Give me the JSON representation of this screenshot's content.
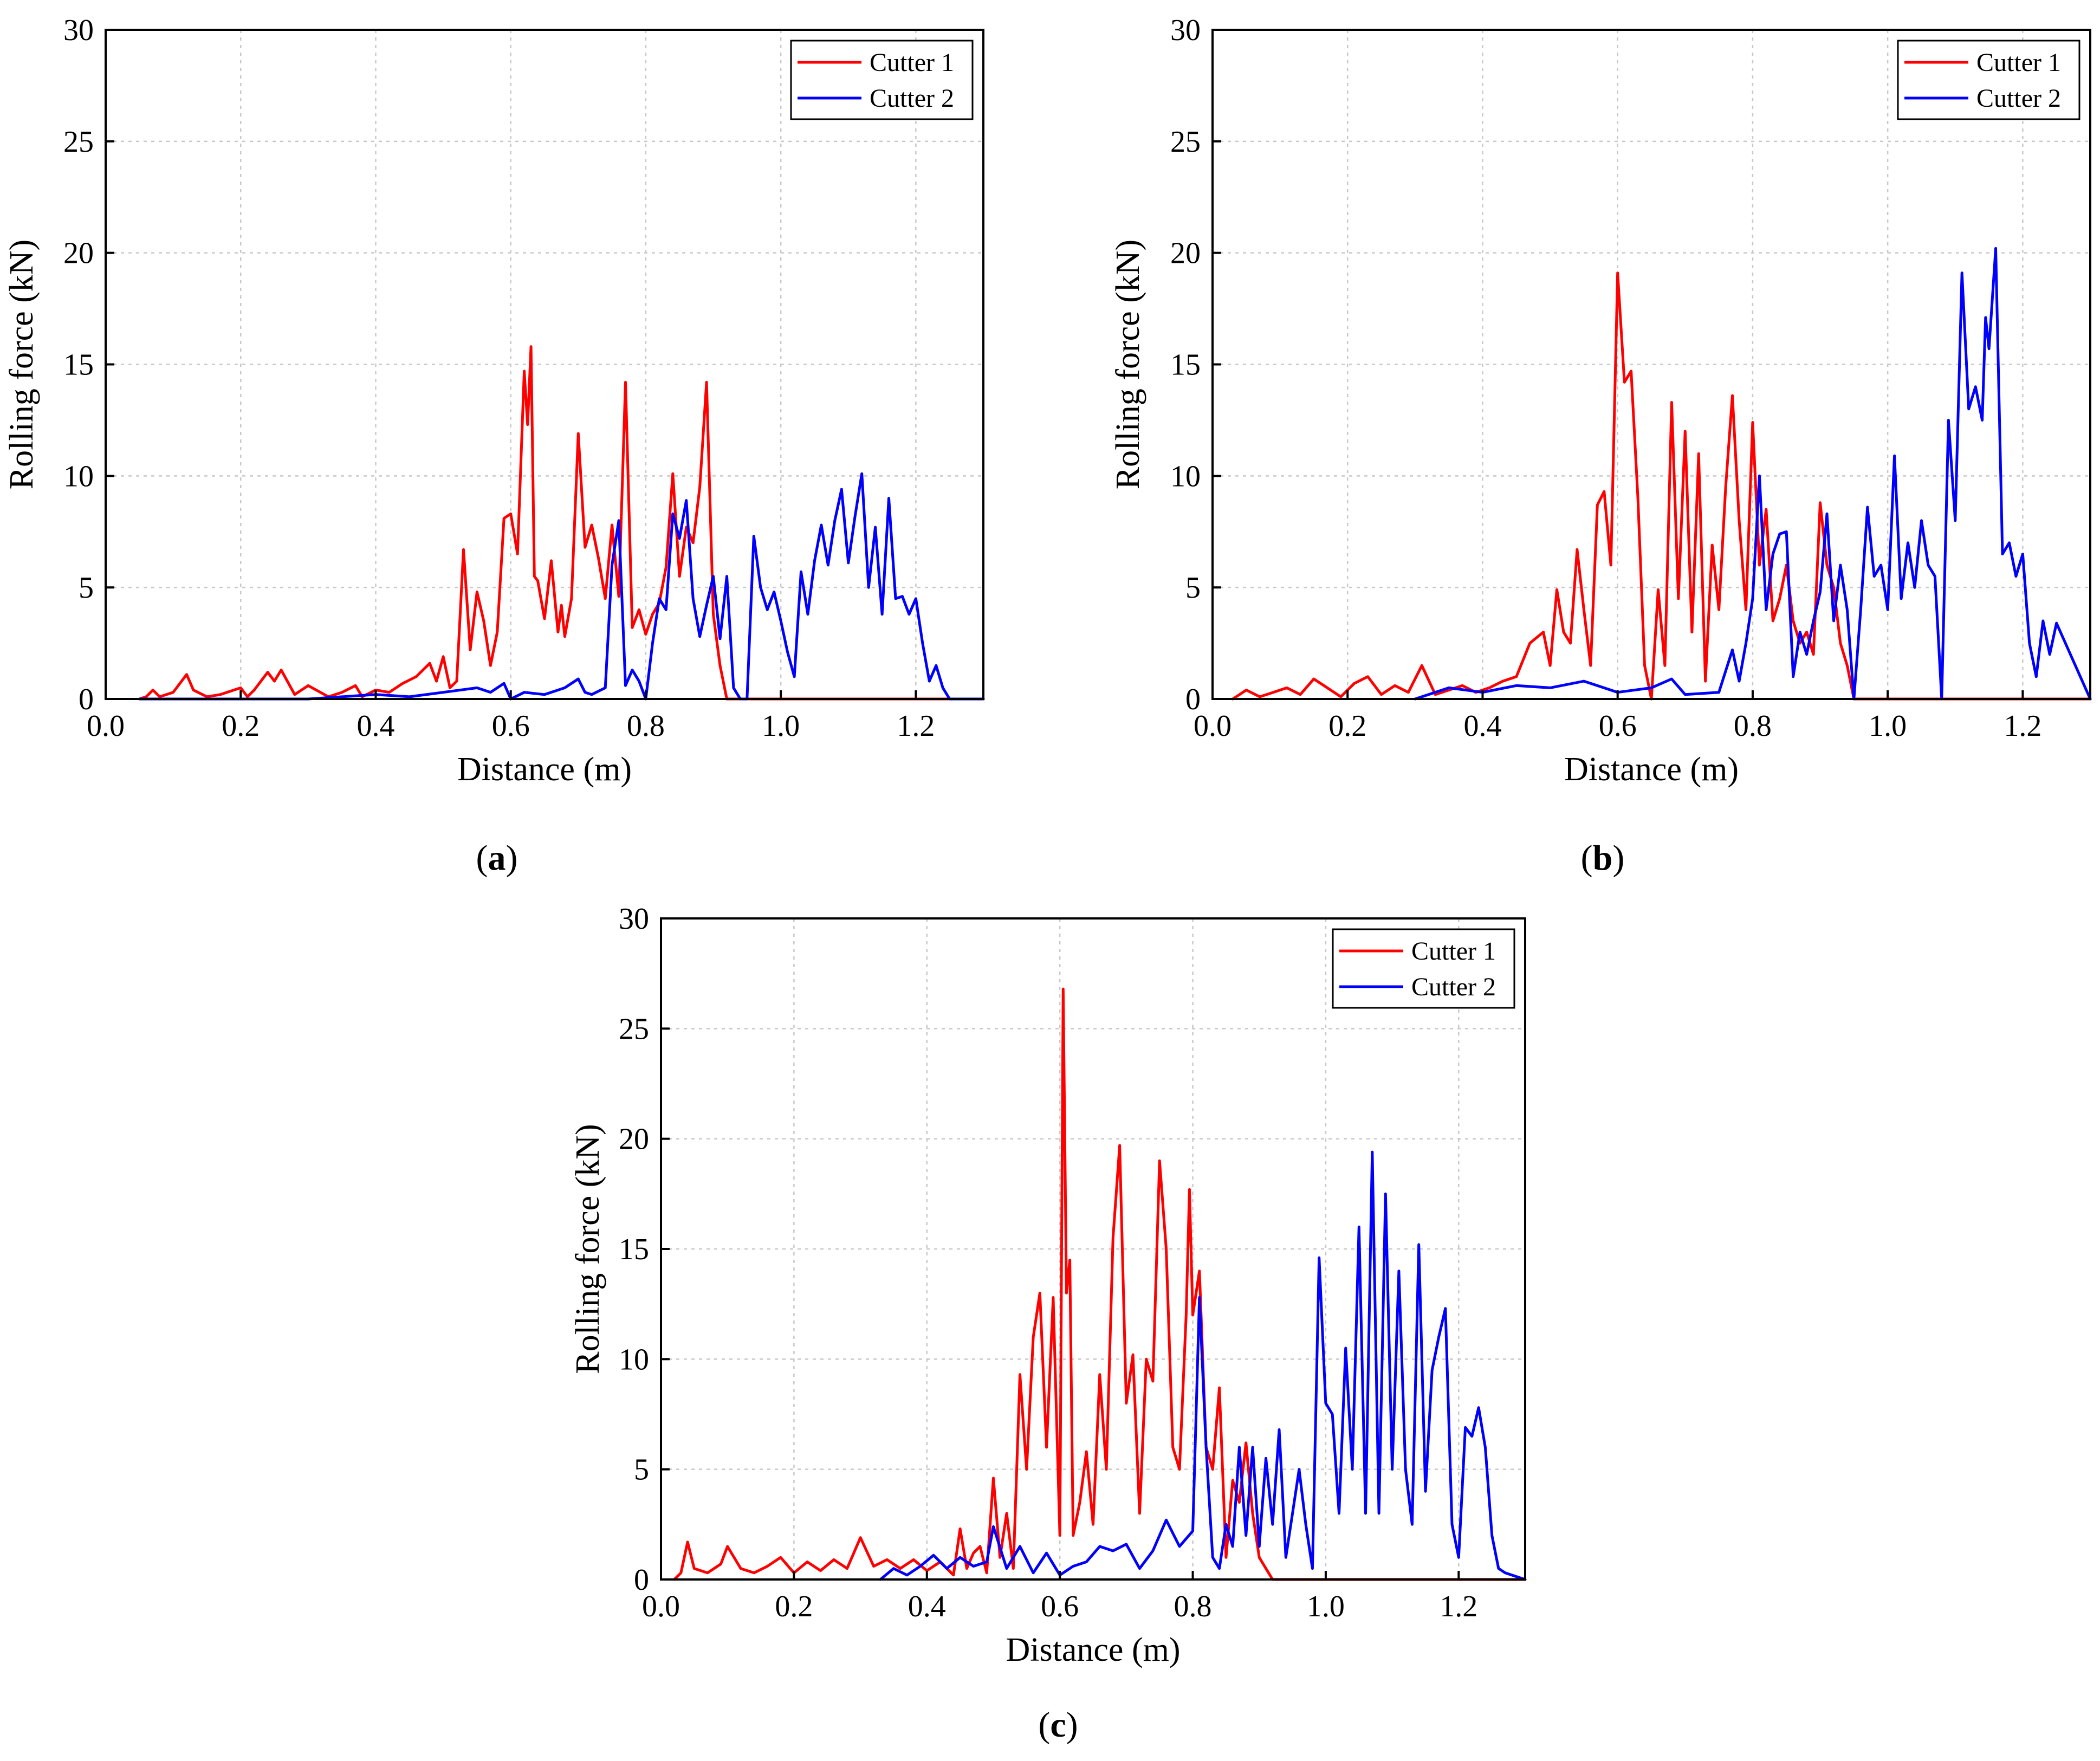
{
  "chart_data": [
    {
      "type": "line",
      "panel": "a",
      "xlabel": "Distance (m)",
      "ylabel": "Rolling force (kN)",
      "xlim": [
        0,
        1.3
      ],
      "ylim": [
        0,
        30
      ],
      "xticks": [
        0.0,
        0.2,
        0.4,
        0.6,
        0.8,
        1.0,
        1.2
      ],
      "xtick_labels": [
        "0.0",
        "0.2",
        "0.4",
        "0.6",
        "0.8",
        "1.0",
        "1.2"
      ],
      "yticks": [
        0,
        5,
        10,
        15,
        20,
        25,
        30
      ],
      "ytick_labels": [
        "0",
        "5",
        "10",
        "15",
        "20",
        "25",
        "30"
      ],
      "grid": true,
      "legend_position": "top-right",
      "series": [
        {
          "name": "Cutter 1",
          "color": "#ff0000",
          "x": [
            0.05,
            0.06,
            0.07,
            0.08,
            0.1,
            0.12,
            0.13,
            0.15,
            0.17,
            0.2,
            0.21,
            0.22,
            0.24,
            0.25,
            0.26,
            0.28,
            0.3,
            0.33,
            0.35,
            0.37,
            0.38,
            0.4,
            0.42,
            0.44,
            0.46,
            0.48,
            0.49,
            0.5,
            0.51,
            0.52,
            0.53,
            0.54,
            0.55,
            0.56,
            0.57,
            0.58,
            0.59,
            0.6,
            0.61,
            0.62,
            0.625,
            0.63,
            0.635,
            0.64,
            0.65,
            0.66,
            0.67,
            0.675,
            0.68,
            0.69,
            0.7,
            0.71,
            0.72,
            0.73,
            0.74,
            0.75,
            0.76,
            0.77,
            0.78,
            0.79,
            0.8,
            0.81,
            0.82,
            0.83,
            0.84,
            0.85,
            0.86,
            0.87,
            0.88,
            0.89,
            0.9,
            0.91,
            0.92,
            0.93,
            0.94,
            1.0,
            1.1,
            1.2,
            1.3
          ],
          "y": [
            0,
            0.1,
            0.4,
            0.1,
            0.3,
            1.1,
            0.4,
            0.1,
            0.2,
            0.5,
            0.1,
            0.4,
            1.2,
            0.8,
            1.3,
            0.2,
            0.6,
            0.1,
            0.3,
            0.6,
            0.1,
            0.4,
            0.3,
            0.7,
            1.0,
            1.6,
            0.8,
            1.9,
            0.5,
            0.8,
            6.7,
            2.2,
            4.8,
            3.5,
            1.5,
            3.0,
            8.1,
            8.3,
            6.5,
            14.7,
            12.3,
            15.8,
            5.5,
            5.3,
            3.6,
            6.2,
            3.0,
            4.2,
            2.8,
            4.5,
            11.9,
            6.8,
            7.8,
            6.3,
            4.5,
            7.8,
            4.6,
            14.2,
            3.2,
            4.0,
            2.9,
            3.8,
            4.3,
            5.9,
            10.1,
            5.5,
            7.7,
            7.0,
            9.5,
            14.2,
            3.8,
            1.5,
            0,
            0,
            0,
            0,
            0,
            0,
            0
          ]
        },
        {
          "name": "Cutter 2",
          "color": "#0000ff",
          "x": [
            0.05,
            0.3,
            0.35,
            0.4,
            0.45,
            0.5,
            0.55,
            0.57,
            0.59,
            0.6,
            0.62,
            0.65,
            0.68,
            0.7,
            0.71,
            0.72,
            0.74,
            0.75,
            0.76,
            0.77,
            0.78,
            0.79,
            0.8,
            0.81,
            0.82,
            0.83,
            0.84,
            0.85,
            0.86,
            0.87,
            0.88,
            0.89,
            0.9,
            0.91,
            0.92,
            0.93,
            0.94,
            0.95,
            0.96,
            0.97,
            0.98,
            0.99,
            1.0,
            1.01,
            1.02,
            1.03,
            1.04,
            1.05,
            1.06,
            1.07,
            1.08,
            1.09,
            1.1,
            1.11,
            1.12,
            1.13,
            1.14,
            1.15,
            1.16,
            1.17,
            1.18,
            1.19,
            1.2,
            1.21,
            1.22,
            1.23,
            1.24,
            1.25,
            1.26,
            1.3
          ],
          "y": [
            0,
            0,
            0.1,
            0.2,
            0.1,
            0.3,
            0.5,
            0.3,
            0.7,
            0,
            0.3,
            0.2,
            0.5,
            0.9,
            0.3,
            0.2,
            0.5,
            6.0,
            8.0,
            0.6,
            1.3,
            0.8,
            0,
            2.5,
            4.5,
            4.0,
            8.3,
            7.2,
            8.9,
            4.5,
            2.8,
            4.2,
            5.5,
            2.7,
            5.5,
            0.5,
            0,
            0,
            7.3,
            5.0,
            4.0,
            4.8,
            3.5,
            2.1,
            1.0,
            5.7,
            3.8,
            6.2,
            7.8,
            6.0,
            8.0,
            9.4,
            6.1,
            8.2,
            10.1,
            5.0,
            7.7,
            3.8,
            9.0,
            4.5,
            4.6,
            3.8,
            4.5,
            2.5,
            0.8,
            1.5,
            0.5,
            0,
            0,
            0
          ]
        }
      ]
    },
    {
      "type": "line",
      "panel": "b",
      "xlabel": "Distance (m)",
      "ylabel": "Rolling force (kN)",
      "xlim": [
        0,
        1.3
      ],
      "ylim": [
        0,
        30
      ],
      "xticks": [
        0.0,
        0.2,
        0.4,
        0.6,
        0.8,
        1.0,
        1.2
      ],
      "xtick_labels": [
        "0.0",
        "0.2",
        "0.4",
        "0.6",
        "0.8",
        "1.0",
        "1.2"
      ],
      "yticks": [
        0,
        5,
        10,
        15,
        20,
        25,
        30
      ],
      "ytick_labels": [
        "0",
        "5",
        "10",
        "15",
        "20",
        "25",
        "30"
      ],
      "grid": true,
      "legend_position": "top-right",
      "series": [
        {
          "name": "Cutter 1",
          "color": "#ff0000",
          "x": [
            0.03,
            0.05,
            0.07,
            0.09,
            0.11,
            0.13,
            0.15,
            0.17,
            0.19,
            0.21,
            0.23,
            0.25,
            0.27,
            0.29,
            0.31,
            0.33,
            0.35,
            0.37,
            0.39,
            0.41,
            0.43,
            0.45,
            0.47,
            0.49,
            0.5,
            0.51,
            0.52,
            0.53,
            0.54,
            0.55,
            0.56,
            0.57,
            0.58,
            0.59,
            0.6,
            0.61,
            0.62,
            0.63,
            0.64,
            0.65,
            0.66,
            0.67,
            0.68,
            0.69,
            0.7,
            0.71,
            0.72,
            0.73,
            0.74,
            0.75,
            0.76,
            0.77,
            0.78,
            0.79,
            0.8,
            0.81,
            0.82,
            0.83,
            0.84,
            0.85,
            0.86,
            0.87,
            0.88,
            0.89,
            0.9,
            0.91,
            0.92,
            0.93,
            0.94,
            0.95,
            1.0,
            1.2,
            1.3
          ],
          "y": [
            0,
            0.4,
            0.1,
            0.3,
            0.5,
            0.2,
            0.9,
            0.5,
            0.1,
            0.7,
            1.0,
            0.2,
            0.6,
            0.3,
            1.5,
            0.2,
            0.4,
            0.6,
            0.3,
            0.5,
            0.8,
            1.0,
            2.5,
            3.0,
            1.5,
            4.9,
            3.0,
            2.5,
            6.7,
            4.0,
            1.5,
            8.7,
            9.3,
            6.0,
            19.1,
            14.2,
            14.7,
            9.0,
            1.5,
            0,
            4.9,
            1.5,
            13.3,
            4.5,
            12.0,
            3.0,
            11.0,
            0.8,
            6.9,
            4.0,
            9.5,
            13.6,
            8.0,
            4.0,
            12.4,
            6.0,
            8.5,
            3.5,
            4.5,
            6.0,
            3.5,
            2.5,
            3.0,
            2.0,
            8.8,
            6.0,
            5.0,
            2.5,
            1.5,
            0,
            0,
            0,
            0
          ]
        },
        {
          "name": "Cutter 2",
          "color": "#0000ff",
          "x": [
            0.3,
            0.35,
            0.4,
            0.45,
            0.5,
            0.55,
            0.6,
            0.65,
            0.68,
            0.7,
            0.75,
            0.77,
            0.78,
            0.79,
            0.8,
            0.81,
            0.82,
            0.83,
            0.84,
            0.85,
            0.86,
            0.87,
            0.88,
            0.89,
            0.9,
            0.91,
            0.92,
            0.93,
            0.94,
            0.95,
            0.96,
            0.97,
            0.98,
            0.99,
            1.0,
            1.01,
            1.02,
            1.03,
            1.04,
            1.05,
            1.06,
            1.07,
            1.08,
            1.09,
            1.1,
            1.11,
            1.12,
            1.13,
            1.14,
            1.145,
            1.15,
            1.16,
            1.17,
            1.18,
            1.19,
            1.2,
            1.21,
            1.22,
            1.23,
            1.24,
            1.25,
            1.3
          ],
          "y": [
            0,
            0.5,
            0.3,
            0.6,
            0.5,
            0.8,
            0.3,
            0.5,
            0.9,
            0.2,
            0.3,
            2.2,
            0.8,
            2.5,
            4.5,
            10.0,
            4.0,
            6.5,
            7.4,
            7.5,
            1.0,
            3.0,
            2.0,
            3.5,
            4.8,
            8.3,
            3.5,
            6.0,
            4.0,
            0,
            4.0,
            8.6,
            5.5,
            6.0,
            4.0,
            10.9,
            4.5,
            7.0,
            5.0,
            8.0,
            6.0,
            5.5,
            0,
            12.5,
            8.0,
            19.1,
            13.0,
            14.0,
            12.5,
            17.1,
            15.7,
            20.2,
            6.5,
            7.0,
            5.5,
            6.5,
            2.5,
            1.0,
            3.5,
            2.0,
            3.4,
            0
          ]
        }
      ]
    },
    {
      "type": "line",
      "panel": "c",
      "xlabel": "Distance (m)",
      "ylabel": "Rolling force (kN)",
      "xlim": [
        0,
        1.3
      ],
      "ylim": [
        0,
        30
      ],
      "xticks": [
        0.0,
        0.2,
        0.4,
        0.6,
        0.8,
        1.0,
        1.2
      ],
      "xtick_labels": [
        "0.0",
        "0.2",
        "0.4",
        "0.6",
        "0.8",
        "1.0",
        "1.2"
      ],
      "yticks": [
        0,
        5,
        10,
        15,
        20,
        25,
        30
      ],
      "ytick_labels": [
        "0",
        "5",
        "10",
        "15",
        "20",
        "25",
        "30"
      ],
      "grid": true,
      "legend_position": "top-right",
      "series": [
        {
          "name": "Cutter 1",
          "color": "#ff0000",
          "x": [
            0.02,
            0.03,
            0.04,
            0.05,
            0.07,
            0.09,
            0.1,
            0.12,
            0.14,
            0.16,
            0.18,
            0.2,
            0.22,
            0.24,
            0.26,
            0.28,
            0.3,
            0.32,
            0.34,
            0.36,
            0.38,
            0.4,
            0.42,
            0.44,
            0.45,
            0.46,
            0.47,
            0.48,
            0.49,
            0.5,
            0.51,
            0.52,
            0.53,
            0.54,
            0.55,
            0.56,
            0.57,
            0.58,
            0.59,
            0.6,
            0.605,
            0.61,
            0.615,
            0.62,
            0.63,
            0.64,
            0.65,
            0.66,
            0.67,
            0.68,
            0.69,
            0.7,
            0.71,
            0.72,
            0.73,
            0.74,
            0.75,
            0.76,
            0.77,
            0.78,
            0.79,
            0.795,
            0.8,
            0.81,
            0.82,
            0.83,
            0.84,
            0.85,
            0.86,
            0.87,
            0.88,
            0.89,
            0.9,
            0.91,
            0.92,
            1.0,
            1.2,
            1.3
          ],
          "y": [
            0,
            0.3,
            1.7,
            0.5,
            0.3,
            0.7,
            1.5,
            0.5,
            0.3,
            0.6,
            1.0,
            0.3,
            0.8,
            0.4,
            0.9,
            0.5,
            1.9,
            0.6,
            0.9,
            0.5,
            0.9,
            0.4,
            0.8,
            0.2,
            2.3,
            0.5,
            1.2,
            1.5,
            0.3,
            4.6,
            1.0,
            3.0,
            0.5,
            9.3,
            5.0,
            11.0,
            13.0,
            6.0,
            12.8,
            2.0,
            26.8,
            13.0,
            14.5,
            2.0,
            3.5,
            5.8,
            2.5,
            9.3,
            5.0,
            15.5,
            19.7,
            8.0,
            10.2,
            3.0,
            10.0,
            9.0,
            19.0,
            15.0,
            6.0,
            5.0,
            12.0,
            17.7,
            12.0,
            14.0,
            6.0,
            5.0,
            8.7,
            1.0,
            4.5,
            3.5,
            6.2,
            3.0,
            1.0,
            0.5,
            0,
            0,
            0,
            0
          ]
        },
        {
          "name": "Cutter 2",
          "color": "#0000ff",
          "x": [
            0.33,
            0.35,
            0.37,
            0.39,
            0.41,
            0.43,
            0.45,
            0.47,
            0.49,
            0.5,
            0.52,
            0.54,
            0.56,
            0.58,
            0.6,
            0.62,
            0.64,
            0.66,
            0.68,
            0.7,
            0.72,
            0.74,
            0.76,
            0.78,
            0.8,
            0.81,
            0.82,
            0.83,
            0.84,
            0.85,
            0.86,
            0.87,
            0.88,
            0.89,
            0.9,
            0.91,
            0.92,
            0.93,
            0.94,
            0.95,
            0.96,
            0.97,
            0.98,
            0.99,
            1.0,
            1.01,
            1.02,
            1.03,
            1.04,
            1.05,
            1.06,
            1.07,
            1.08,
            1.09,
            1.1,
            1.11,
            1.12,
            1.13,
            1.14,
            1.15,
            1.16,
            1.17,
            1.18,
            1.19,
            1.2,
            1.21,
            1.22,
            1.23,
            1.24,
            1.25,
            1.26,
            1.27,
            1.28,
            1.3
          ],
          "y": [
            0,
            0.5,
            0.2,
            0.6,
            1.1,
            0.5,
            1.0,
            0.6,
            0.8,
            2.4,
            0.5,
            1.5,
            0.3,
            1.2,
            0.2,
            0.6,
            0.8,
            1.5,
            1.3,
            1.6,
            0.5,
            1.3,
            2.7,
            1.5,
            2.2,
            12.8,
            6.0,
            1.0,
            0.5,
            2.5,
            1.5,
            6.0,
            2.0,
            6.0,
            1.5,
            5.5,
            2.5,
            6.8,
            1.0,
            3.0,
            5.0,
            2.5,
            0.5,
            14.6,
            8.0,
            7.5,
            3.0,
            10.5,
            5.0,
            16.0,
            3.0,
            19.4,
            3.0,
            17.5,
            5.0,
            14.0,
            5.0,
            2.5,
            15.2,
            4.0,
            9.5,
            11.0,
            12.3,
            2.5,
            1.0,
            6.9,
            6.5,
            7.8,
            6.0,
            2.0,
            0.5,
            0.3,
            0.2,
            0
          ]
        }
      ]
    }
  ],
  "panels": {
    "a": {
      "open": "(",
      "letter": "a",
      "close": ")"
    },
    "b": {
      "open": "(",
      "letter": "b",
      "close": ")"
    },
    "c": {
      "open": "(",
      "letter": "c",
      "close": ")"
    }
  }
}
